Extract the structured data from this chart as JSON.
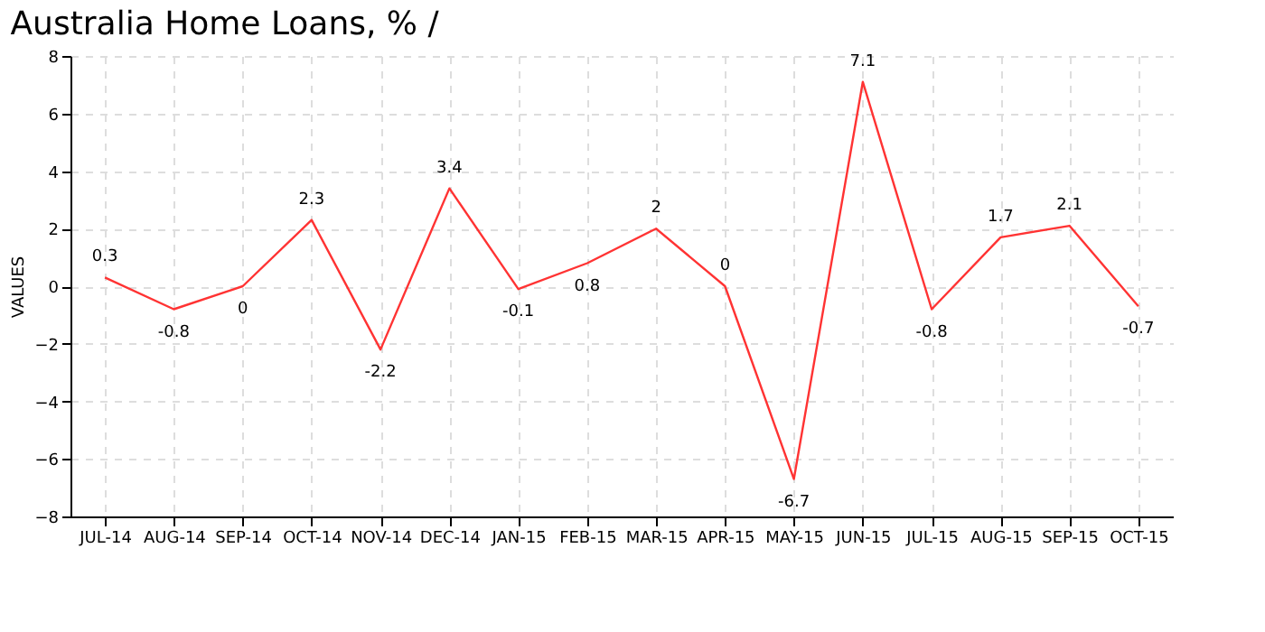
{
  "chart_data": {
    "type": "line",
    "title": "Australia Home Loans, % /",
    "ylabel": "VALUES",
    "categories": [
      "JUL-14",
      "AUG-14",
      "SEP-14",
      "OCT-14",
      "NOV-14",
      "DEC-14",
      "JAN-15",
      "FEB-15",
      "MAR-15",
      "APR-15",
      "MAY-15",
      "JUN-15",
      "JUL-15",
      "AUG-15",
      "SEP-15",
      "OCT-15"
    ],
    "series": [
      {
        "color": "#ff3333",
        "values": [
          0.3,
          -0.8,
          0,
          2.3,
          -2.2,
          3.4,
          -0.1,
          0.8,
          2,
          0,
          -6.7,
          7.1,
          -0.8,
          1.7,
          2.1,
          -0.7
        ]
      }
    ],
    "ylim": [
      -8,
      8
    ],
    "yticks": [
      -8,
      -6,
      -4,
      -2,
      0,
      2,
      4,
      6,
      8
    ],
    "grid": true,
    "data_labels": true,
    "marker": "none",
    "line_style": "solid"
  }
}
